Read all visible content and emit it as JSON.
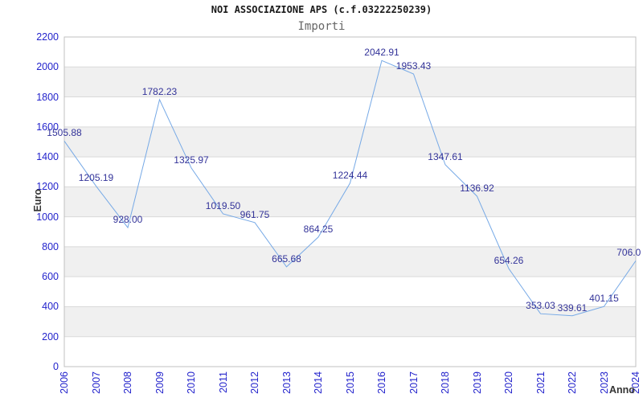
{
  "header": {
    "title": "NOI ASSOCIAZIONE APS (c.f.03222250239)",
    "subtitle": "Importi"
  },
  "chart_data": {
    "type": "line",
    "title": "NOI ASSOCIAZIONE APS (c.f.03222250239)",
    "subtitle": "Importi",
    "xlabel": "Anno",
    "ylabel": "Euro",
    "categories": [
      "2006",
      "2007",
      "2008",
      "2009",
      "2010",
      "2011",
      "2012",
      "2013",
      "2014",
      "2015",
      "2016",
      "2017",
      "2018",
      "2019",
      "2020",
      "2021",
      "2022",
      "2023",
      "2024"
    ],
    "values": [
      1505.88,
      1205.19,
      928.0,
      1782.23,
      1325.97,
      1019.5,
      961.75,
      665.68,
      864.25,
      1224.44,
      2042.91,
      1953.43,
      1347.61,
      1136.92,
      654.26,
      353.03,
      339.61,
      401.15,
      706.0
    ],
    "point_labels": [
      "1505.88",
      "1205.19",
      "928.00",
      "1782.23",
      "1325.97",
      "1019.50",
      "961.75",
      "665.68",
      "864.25",
      "1224.44",
      "2042.91",
      "1953.43",
      "1347.61",
      "1136.92",
      "654.26",
      "353.03",
      "339.61",
      "401.15",
      "706.0"
    ],
    "ylim": [
      0,
      2200
    ],
    "ytick_step": 200,
    "grid": true,
    "alternating_bands": true,
    "legend_position": "none",
    "colors": {
      "line": "#76a9e6",
      "point_label": "#333399",
      "tick_label": "#2323cc",
      "band": "#f0f0f0",
      "gridline": "#d9d9d9",
      "plot_border": "#c0c0c0",
      "title": "#1a1a1a",
      "subtitle": "#666666",
      "axis_title": "#333333"
    }
  }
}
